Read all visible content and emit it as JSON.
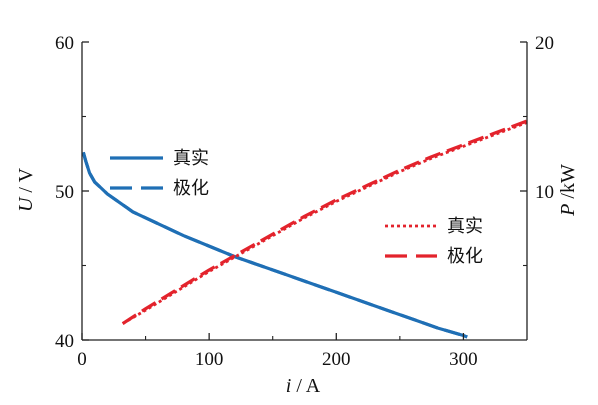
{
  "chart_data": {
    "type": "line",
    "xlabel": {
      "var": "i",
      "unit": "/ A"
    },
    "ylabel_left": {
      "var": "U",
      "unit": "/ V"
    },
    "ylabel_right": {
      "var": "P",
      "unit": "/kW"
    },
    "xlim": [
      0,
      350
    ],
    "ylim_left": [
      40,
      60
    ],
    "ylim_right": [
      0,
      20
    ],
    "x_ticks": [
      "0",
      "100",
      "200",
      "300"
    ],
    "y_left_ticks": [
      "40",
      "50",
      "60"
    ],
    "y_right_ticks": [
      "10",
      "20"
    ],
    "grid": false,
    "colors": {
      "voltage": "#1f6fb5",
      "power": "#e3232c"
    },
    "legend_left_position": "upper-left",
    "legend_right_position": "right",
    "series": [
      {
        "name": "真实",
        "axis": "left",
        "style": "solid",
        "x": [
          1,
          3,
          6,
          10,
          15,
          20,
          30,
          40,
          60,
          80,
          100,
          120,
          140,
          160,
          180,
          200,
          220,
          240,
          260,
          280,
          300,
          303
        ],
        "values": [
          52.6,
          52.0,
          51.2,
          50.6,
          50.2,
          49.8,
          49.2,
          48.6,
          47.8,
          47.0,
          46.3,
          45.6,
          45.0,
          44.4,
          43.8,
          43.2,
          42.6,
          42.0,
          41.4,
          40.8,
          40.3,
          40.2
        ]
      },
      {
        "name": "极化",
        "axis": "left",
        "style": "dash",
        "x": [
          1,
          3,
          6,
          10,
          15,
          20,
          30,
          40,
          60,
          80,
          100,
          120,
          140,
          160,
          180,
          200,
          220,
          240,
          260,
          280,
          300,
          303
        ],
        "values": [
          52.6,
          52.0,
          51.2,
          50.6,
          50.2,
          49.8,
          49.2,
          48.6,
          47.8,
          47.0,
          46.3,
          45.6,
          45.0,
          44.4,
          43.8,
          43.2,
          42.6,
          42.0,
          41.4,
          40.8,
          40.3,
          40.2
        ]
      },
      {
        "name": "真实",
        "axis": "right",
        "style": "dot",
        "x": [
          32,
          50,
          75,
          100,
          125,
          150,
          175,
          200,
          225,
          250,
          275,
          300,
          325,
          350
        ],
        "values": [
          1.1,
          2.0,
          3.3,
          4.6,
          5.8,
          7.0,
          8.2,
          9.3,
          10.3,
          11.3,
          12.2,
          13.0,
          13.8,
          14.6
        ]
      },
      {
        "name": "极化",
        "axis": "right",
        "style": "dash",
        "x": [
          32,
          50,
          75,
          100,
          125,
          150,
          175,
          200,
          225,
          250,
          275,
          300,
          325,
          350
        ],
        "values": [
          1.1,
          2.1,
          3.4,
          4.7,
          5.9,
          7.1,
          8.3,
          9.4,
          10.4,
          11.4,
          12.3,
          13.1,
          13.9,
          14.7
        ]
      }
    ]
  }
}
